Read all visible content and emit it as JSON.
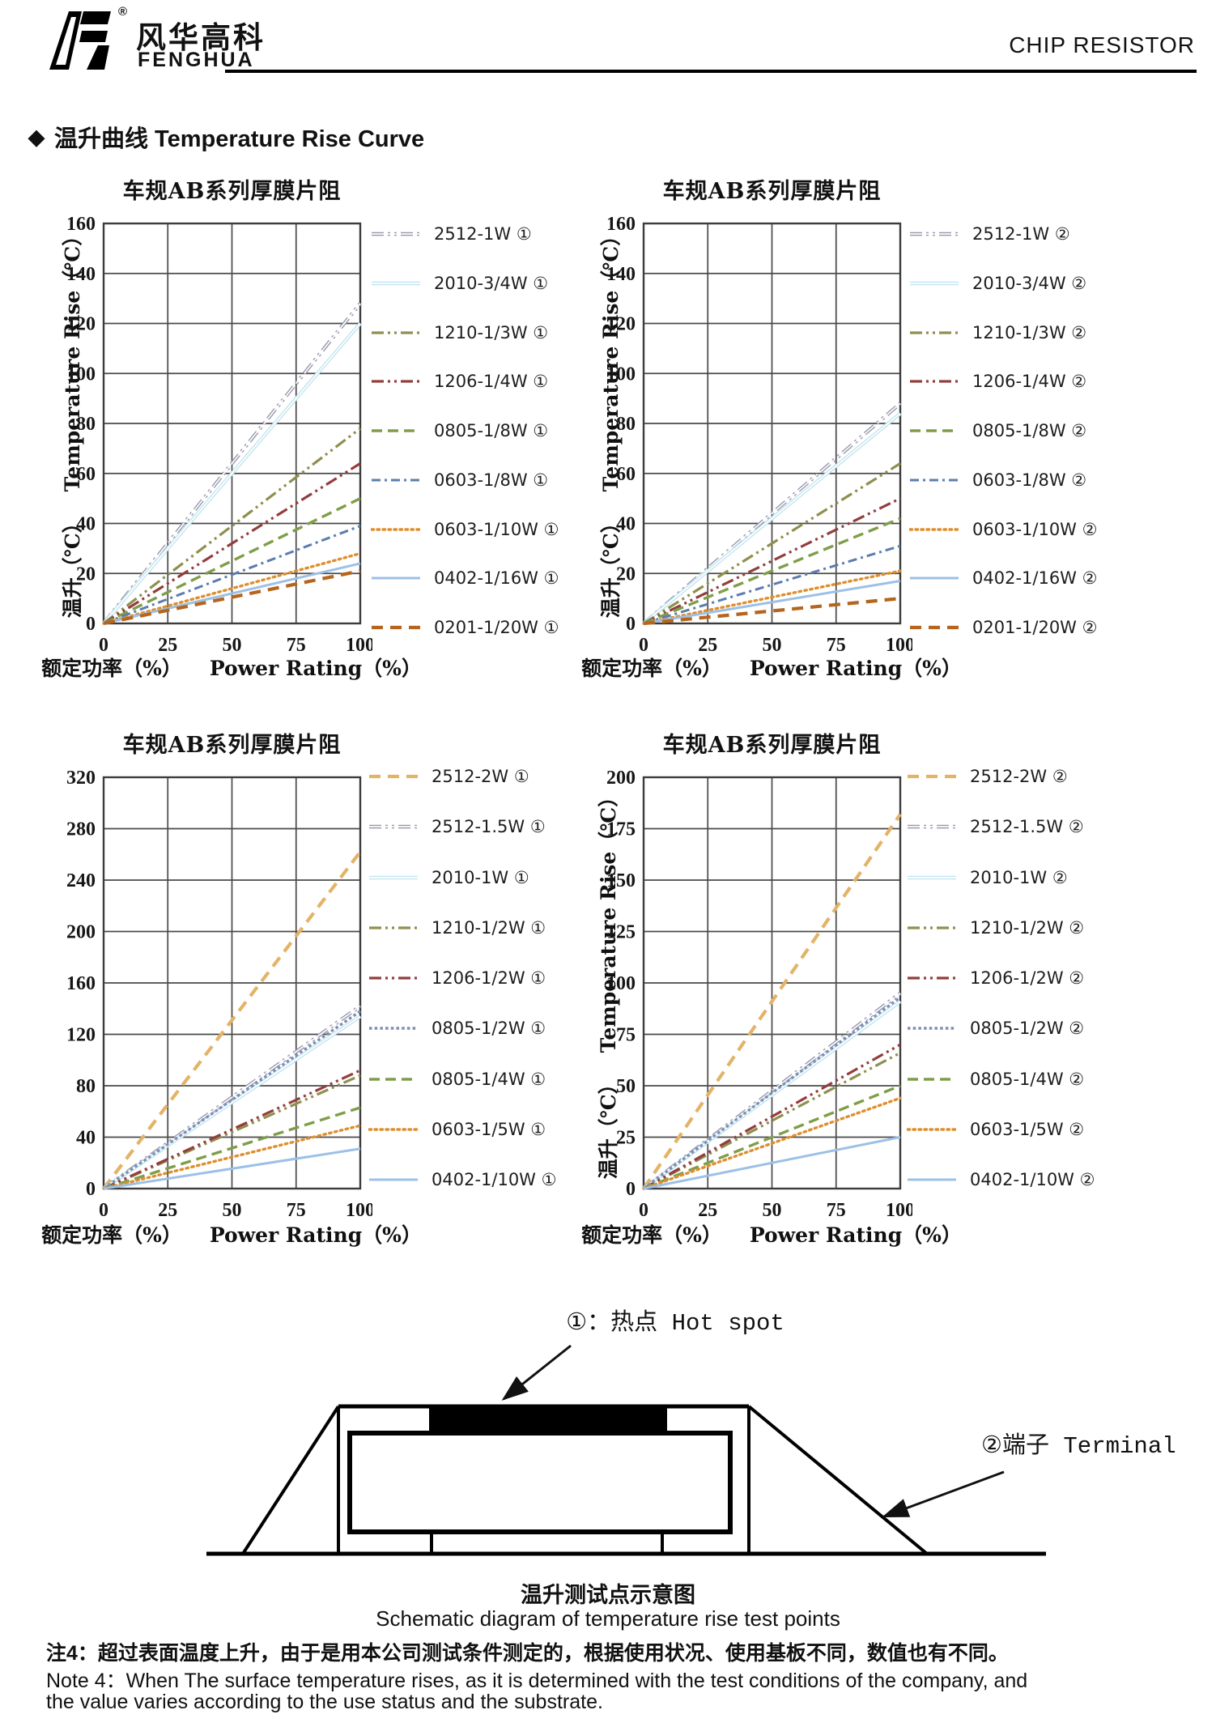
{
  "header": {
    "brand_cn": "风华高科",
    "brand_en": "FENGHUA",
    "registered": "®",
    "doc_title": "CHIP RESISTOR"
  },
  "section": {
    "bullet": "◆",
    "title": "温升曲线 Temperature Rise Curve"
  },
  "chart_data": [
    {
      "type": "line",
      "title": "车规AB系列厚膜片阻",
      "xlabel_cn": "额定功率（%）",
      "xlabel_en": "Power Rating（%）",
      "ylabel_cn": "温升（℃）",
      "ylabel_en": "Temperature Rise（℃）",
      "xlim": [
        0,
        100
      ],
      "xticks": [
        0,
        25,
        50,
        75,
        100
      ],
      "ylim": [
        0,
        160
      ],
      "yticks": [
        0,
        20,
        40,
        60,
        80,
        100,
        120,
        140,
        160
      ],
      "x": [
        0,
        100
      ],
      "series": [
        {
          "name": "2512-1W ①",
          "color": "#9696ad",
          "style": "ldd",
          "double": true,
          "values": [
            0,
            128
          ]
        },
        {
          "name": "2010-3/4W ①",
          "color": "#c2e4ef",
          "style": "solid",
          "double": true,
          "values": [
            0,
            120
          ]
        },
        {
          "name": "1210-1/3W ①",
          "color": "#8f8f4f",
          "style": "ldd",
          "double": false,
          "values": [
            0,
            78
          ]
        },
        {
          "name": "1206-1/4W ①",
          "color": "#943d3d",
          "style": "ldd",
          "double": false,
          "values": [
            0,
            64
          ]
        },
        {
          "name": "0805-1/8W ①",
          "color": "#7f9e49",
          "style": "dash",
          "double": false,
          "values": [
            0,
            50
          ]
        },
        {
          "name": "0603-1/8W ①",
          "color": "#5c7cb0",
          "style": "dashdot",
          "double": false,
          "values": [
            0,
            39
          ]
        },
        {
          "name": "0603-1/10W ①",
          "color": "#de8f2e",
          "style": "dot",
          "double": false,
          "values": [
            0,
            28
          ]
        },
        {
          "name": "0402-1/16W ①",
          "color": "#9cc0e7",
          "style": "solid",
          "double": false,
          "values": [
            0,
            24
          ]
        },
        {
          "name": "0201-1/20W ①",
          "color": "#b5651d",
          "style": "dashw",
          "double": false,
          "values": [
            0,
            21
          ]
        }
      ]
    },
    {
      "type": "line",
      "title": "车规AB系列厚膜片阻",
      "xlabel_cn": "额定功率（%）",
      "xlabel_en": "Power Rating（%）",
      "ylabel_cn": "温升（℃）",
      "ylabel_en": "Temperature Rise（℃）",
      "xlim": [
        0,
        100
      ],
      "xticks": [
        0,
        25,
        50,
        75,
        100
      ],
      "ylim": [
        0,
        160
      ],
      "yticks": [
        0,
        20,
        40,
        60,
        80,
        100,
        120,
        140,
        160
      ],
      "x": [
        0,
        100
      ],
      "series": [
        {
          "name": "2512-1W ②",
          "color": "#9696ad",
          "style": "ldd",
          "double": true,
          "values": [
            0,
            88
          ]
        },
        {
          "name": "2010-3/4W ②",
          "color": "#c2e4ef",
          "style": "solid",
          "double": true,
          "values": [
            0,
            84
          ]
        },
        {
          "name": "1210-1/3W ②",
          "color": "#8f8f4f",
          "style": "ldd",
          "double": false,
          "values": [
            0,
            64
          ]
        },
        {
          "name": "1206-1/4W ②",
          "color": "#943d3d",
          "style": "ldd",
          "double": false,
          "values": [
            0,
            50
          ]
        },
        {
          "name": "0805-1/8W ②",
          "color": "#7f9e49",
          "style": "dash",
          "double": false,
          "values": [
            0,
            42
          ]
        },
        {
          "name": "0603-1/8W ②",
          "color": "#5c7cb0",
          "style": "dashdot",
          "double": false,
          "values": [
            0,
            31
          ]
        },
        {
          "name": "0603-1/10W ②",
          "color": "#de8f2e",
          "style": "dot",
          "double": false,
          "values": [
            0,
            21
          ]
        },
        {
          "name": "0402-1/16W ②",
          "color": "#9cc0e7",
          "style": "solid",
          "double": false,
          "values": [
            0,
            17
          ]
        },
        {
          "name": "0201-1/20W ②",
          "color": "#b5651d",
          "style": "dashw",
          "double": false,
          "values": [
            0,
            10
          ]
        }
      ]
    },
    {
      "type": "line",
      "title": "车规AB系列厚膜片阻",
      "xlabel_cn": "额定功率（%）",
      "xlabel_en": "Power Rating（%）",
      "xlim": [
        0,
        100
      ],
      "xticks": [
        0,
        25,
        50,
        75,
        100
      ],
      "ylim": [
        0,
        320
      ],
      "yticks": [
        0,
        40,
        80,
        120,
        160,
        200,
        240,
        280,
        320
      ],
      "x": [
        0,
        100
      ],
      "series": [
        {
          "name": "2512-2W ①",
          "color": "#e3b367",
          "style": "dashw",
          "double": false,
          "values": [
            0,
            262
          ]
        },
        {
          "name": "2512-1.5W ①",
          "color": "#9696ad",
          "style": "ldd",
          "double": true,
          "values": [
            0,
            142
          ]
        },
        {
          "name": "2010-1W ①",
          "color": "#c2e4ef",
          "style": "solid",
          "double": true,
          "values": [
            0,
            134
          ]
        },
        {
          "name": "1210-1/2W ①",
          "color": "#8f8f4f",
          "style": "ldd",
          "double": false,
          "values": [
            0,
            88
          ]
        },
        {
          "name": "1206-1/2W ①",
          "color": "#943d3d",
          "style": "ldd",
          "double": false,
          "values": [
            0,
            92
          ]
        },
        {
          "name": "0805-1/2W ①",
          "color": "#7d8fb3",
          "style": "sqdot",
          "double": false,
          "values": [
            0,
            138
          ]
        },
        {
          "name": "0805-1/4W ①",
          "color": "#7f9e49",
          "style": "dash",
          "double": false,
          "values": [
            0,
            63
          ]
        },
        {
          "name": "0603-1/5W ①",
          "color": "#de8f2e",
          "style": "dot",
          "double": false,
          "values": [
            0,
            49
          ]
        },
        {
          "name": "0402-1/10W ①",
          "color": "#9cc0e7",
          "style": "solid",
          "double": false,
          "values": [
            0,
            31
          ]
        }
      ]
    },
    {
      "type": "line",
      "title": "车规AB系列厚膜片阻",
      "xlabel_cn": "额定功率（%）",
      "xlabel_en": "Power Rating（%）",
      "ylabel_cn": "温升（℃）",
      "ylabel_en": "Temperature Rise（℃）",
      "xlim": [
        0,
        100
      ],
      "xticks": [
        0,
        25,
        50,
        75,
        100
      ],
      "ylim": [
        0,
        200
      ],
      "yticks": [
        0,
        25,
        50,
        75,
        100,
        125,
        150,
        175,
        200
      ],
      "x": [
        0,
        100
      ],
      "series": [
        {
          "name": "2512-2W ②",
          "color": "#e3b367",
          "style": "dashw",
          "double": false,
          "values": [
            0,
            182
          ]
        },
        {
          "name": "2512-1.5W ②",
          "color": "#9696ad",
          "style": "ldd",
          "double": true,
          "values": [
            0,
            95
          ]
        },
        {
          "name": "2010-1W ②",
          "color": "#c2e4ef",
          "style": "solid",
          "double": true,
          "values": [
            0,
            91
          ]
        },
        {
          "name": "1210-1/2W ②",
          "color": "#8f8f4f",
          "style": "ldd",
          "double": false,
          "values": [
            0,
            66
          ]
        },
        {
          "name": "1206-1/2W ②",
          "color": "#943d3d",
          "style": "ldd",
          "double": false,
          "values": [
            0,
            70
          ]
        },
        {
          "name": "0805-1/2W ②",
          "color": "#7d8fb3",
          "style": "sqdot",
          "double": false,
          "values": [
            0,
            93
          ]
        },
        {
          "name": "0805-1/4W ②",
          "color": "#7f9e49",
          "style": "dash",
          "double": false,
          "values": [
            0,
            50
          ]
        },
        {
          "name": "0603-1/5W ②",
          "color": "#de8f2e",
          "style": "dot",
          "double": false,
          "values": [
            0,
            44
          ]
        },
        {
          "name": "0402-1/10W ②",
          "color": "#9cc0e7",
          "style": "solid",
          "double": false,
          "values": [
            0,
            25
          ]
        }
      ]
    }
  ],
  "schematic": {
    "hotspot_label": "①：热点 Hot spot",
    "terminal_label": "②端子 Terminal",
    "caption_cn": "温升测试点示意图",
    "caption_en": "Schematic diagram of temperature rise test points"
  },
  "notes": {
    "line1": "注4：超过表面温度上升，由于是用本公司测试条件测定的，根据使用状况、使用基板不同，数值也有不同。",
    "line2": "Note 4：When The surface temperature rises, as it is determined with the test conditions of the company, and",
    "line3": "the value varies according to the use status and the substrate."
  }
}
